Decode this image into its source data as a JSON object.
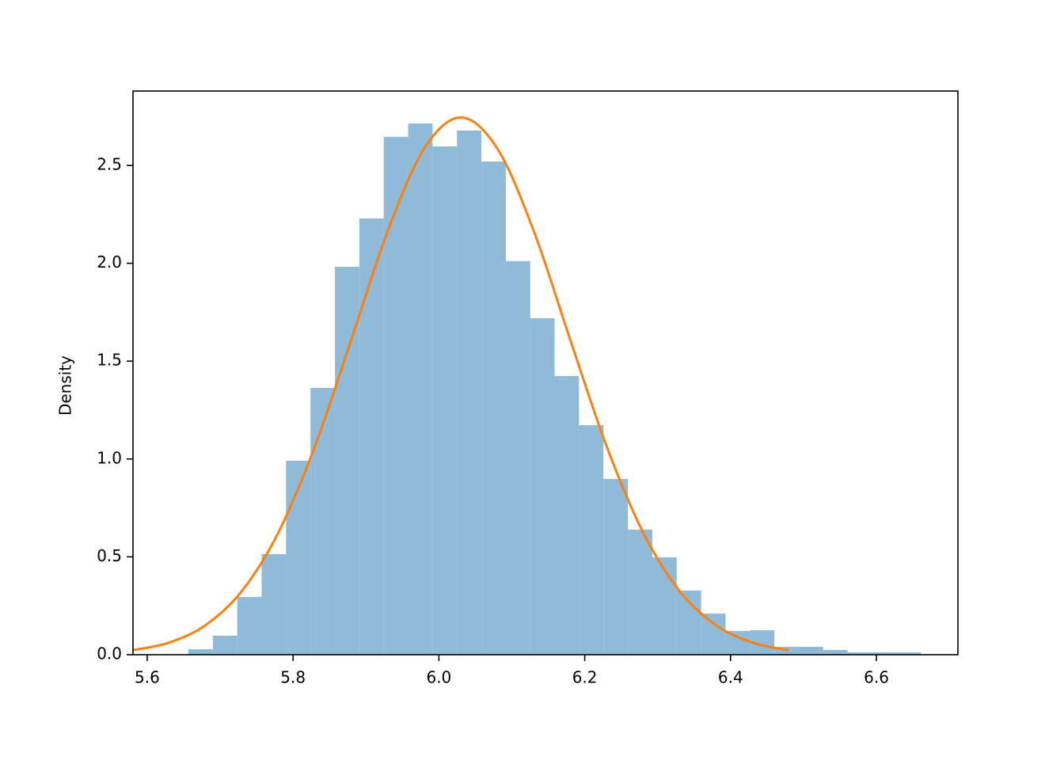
{
  "chart_data": {
    "type": "histogram",
    "ylabel": "Density",
    "bins": [
      5.6565,
      5.69,
      5.7235,
      5.7569,
      5.7904,
      5.8239,
      5.8574,
      5.8909,
      5.9244,
      5.9578,
      5.9913,
      6.0248,
      6.0583,
      6.0918,
      6.1253,
      6.1587,
      6.1922,
      6.2257,
      6.2592,
      6.2927,
      6.3262,
      6.3596,
      6.3931,
      6.4266,
      6.4601,
      6.4936,
      6.5271,
      6.5605,
      6.594,
      6.6275,
      6.661
    ],
    "values": [
      0.028,
      0.097,
      0.295,
      0.514,
      0.991,
      1.363,
      1.982,
      2.229,
      2.646,
      2.714,
      2.597,
      2.678,
      2.52,
      2.011,
      1.719,
      1.424,
      1.173,
      0.898,
      0.639,
      0.498,
      0.328,
      0.21,
      0.121,
      0.125,
      0.04,
      0.04,
      0.024,
      0.012,
      0.012,
      0.012
    ],
    "color": "#8fbbd9",
    "lines": [
      {
        "type": "line",
        "color": "#ff7f0e",
        "x": [
          5.58,
          5.63,
          5.68,
          5.73,
          5.78,
          5.83,
          5.88,
          5.93,
          5.98,
          6.03,
          6.08,
          6.13,
          6.18,
          6.23,
          6.28,
          6.33,
          6.38,
          6.43,
          6.48
        ],
        "values": [
          0.0227,
          0.0621,
          0.151,
          0.326,
          0.625,
          1.065,
          1.611,
          2.166,
          2.587,
          2.745,
          2.587,
          2.166,
          1.611,
          1.065,
          0.625,
          0.326,
          0.151,
          0.0621,
          0.0227
        ]
      }
    ],
    "xlim": [
      5.5805,
      6.7118
    ],
    "ylim": [
      0,
      2.88
    ],
    "xticks": [
      {
        "value": 5.6,
        "label": "5.6"
      },
      {
        "value": 5.8,
        "label": "5.8"
      },
      {
        "value": 6.0,
        "label": "6.0"
      },
      {
        "value": 6.2,
        "label": "6.2"
      },
      {
        "value": 6.4,
        "label": "6.4"
      },
      {
        "value": 6.6,
        "label": "6.6"
      }
    ],
    "yticks": [
      {
        "value": 0,
        "label": "0.0"
      },
      0.5,
      {
        "value": 1,
        "label": "1.0"
      },
      1.5,
      {
        "value": 2,
        "label": "2.0"
      },
      2.5
    ]
  }
}
